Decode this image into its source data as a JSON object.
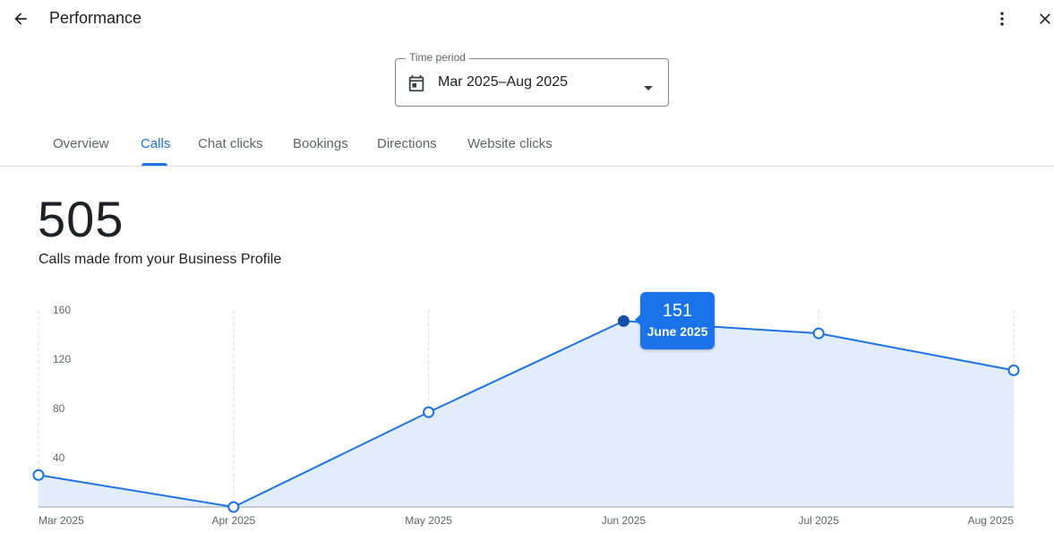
{
  "header": {
    "title": "Performance",
    "back_icon": "arrow-back-icon",
    "more_icon": "more-vert-icon",
    "close_icon": "close-icon"
  },
  "time_period": {
    "label": "Time period",
    "value": "Mar 2025–Aug 2025",
    "icon": "calendar-icon"
  },
  "tabs": [
    {
      "label": "Overview",
      "active": false
    },
    {
      "label": "Calls",
      "active": true
    },
    {
      "label": "Chat clicks",
      "active": false
    },
    {
      "label": "Bookings",
      "active": false
    },
    {
      "label": "Directions",
      "active": false
    },
    {
      "label": "Website clicks",
      "active": false
    }
  ],
  "summary": {
    "total": "505",
    "description": "Calls made from your Business Profile"
  },
  "tooltip": {
    "value": "151",
    "label": "June 2025"
  },
  "colors": {
    "accent": "#1a73e8",
    "area_fill": "#e3ecfb",
    "selected_point": "#174ea6"
  },
  "chart_data": {
    "type": "area",
    "x": [
      "Mar 2025",
      "Apr 2025",
      "May 2025",
      "Jun 2025",
      "Jul 2025",
      "Aug 2025"
    ],
    "values": [
      26,
      0,
      77,
      151,
      141,
      111
    ],
    "y_ticks": [
      40,
      80,
      120,
      160
    ],
    "ylim": [
      0,
      160
    ],
    "selected_index": 3,
    "grid": "vertical dashed"
  }
}
